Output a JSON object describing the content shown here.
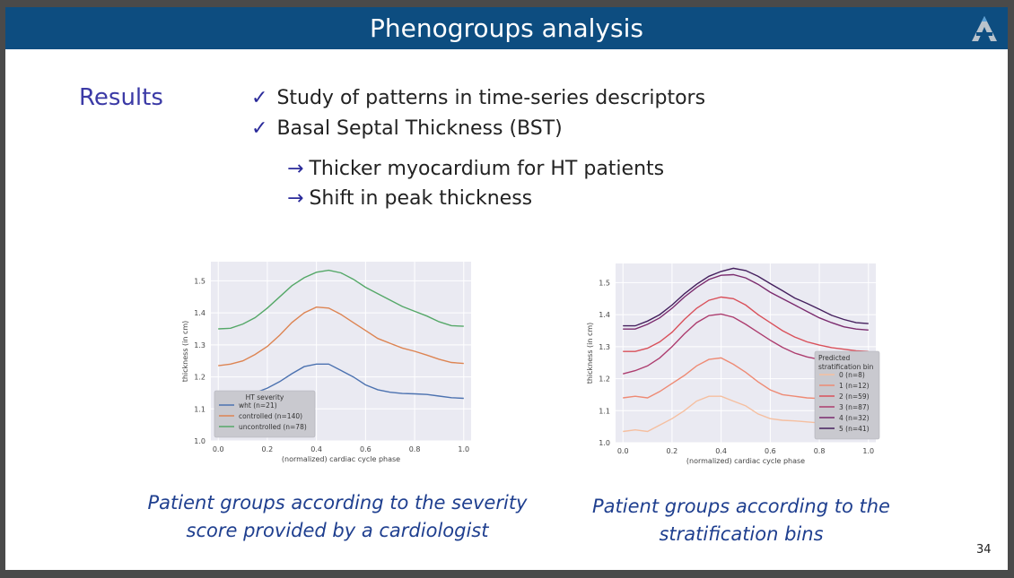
{
  "slide": {
    "title": "Phenogroups analysis",
    "section": "Results",
    "bullets": [
      "Study of patterns in time-series descriptors",
      "Basal Septal Thickness (BST)"
    ],
    "sub_bullets": [
      "Thicker myocardium for HT patients",
      "Shift in peak thickness"
    ],
    "check_symbol": "✓",
    "arrow_symbol": "→",
    "captions": [
      [
        "Patient groups according to the severity",
        "score provided by a cardiologist"
      ],
      [
        "Patient groups according to the",
        "stratification bins"
      ]
    ],
    "page_number": "34",
    "colors": {
      "title_bar": "#0d4d80",
      "accent": "#3b3aa6",
      "caption": "#1f3f8f"
    }
  },
  "chart_data": [
    {
      "type": "line",
      "xlabel": "(normalized) cardiac cycle phase",
      "ylabel": "thickness (in cm)",
      "xlim": [
        -0.03,
        1.03
      ],
      "ylim": [
        1.0,
        1.56
      ],
      "xticks": [
        "0.0",
        "0.2",
        "0.4",
        "0.6",
        "0.8",
        "1.0"
      ],
      "yticks": [
        "1.0",
        "1.1",
        "1.2",
        "1.3",
        "1.4",
        "1.5"
      ],
      "grid": true,
      "legend_title": "HT severity",
      "legend_position": "lower-left",
      "series": [
        {
          "name": "wht (n=21)",
          "color": "#4c72b0",
          "x": [
            0,
            0.05,
            0.1,
            0.15,
            0.2,
            0.25,
            0.3,
            0.35,
            0.4,
            0.45,
            0.5,
            0.55,
            0.6,
            0.65,
            0.7,
            0.75,
            0.8,
            0.85,
            0.9,
            0.95,
            1.0
          ],
          "y": [
            1.145,
            1.145,
            1.142,
            1.15,
            1.165,
            1.185,
            1.21,
            1.232,
            1.24,
            1.24,
            1.22,
            1.2,
            1.175,
            1.16,
            1.152,
            1.148,
            1.147,
            1.145,
            1.14,
            1.135,
            1.133
          ]
        },
        {
          "name": "controlled (n=140)",
          "color": "#dd8452",
          "x": [
            0,
            0.05,
            0.1,
            0.15,
            0.2,
            0.25,
            0.3,
            0.35,
            0.4,
            0.45,
            0.5,
            0.55,
            0.6,
            0.65,
            0.7,
            0.75,
            0.8,
            0.85,
            0.9,
            0.95,
            1.0
          ],
          "y": [
            1.235,
            1.24,
            1.25,
            1.27,
            1.295,
            1.33,
            1.37,
            1.4,
            1.418,
            1.415,
            1.395,
            1.37,
            1.345,
            1.32,
            1.305,
            1.29,
            1.28,
            1.268,
            1.255,
            1.245,
            1.242
          ]
        },
        {
          "name": "uncontrolled (n=78)",
          "color": "#55a868",
          "x": [
            0,
            0.05,
            0.1,
            0.15,
            0.2,
            0.25,
            0.3,
            0.35,
            0.4,
            0.45,
            0.5,
            0.55,
            0.6,
            0.65,
            0.7,
            0.75,
            0.8,
            0.85,
            0.9,
            0.95,
            1.0
          ],
          "y": [
            1.35,
            1.352,
            1.365,
            1.385,
            1.415,
            1.45,
            1.485,
            1.51,
            1.527,
            1.533,
            1.525,
            1.505,
            1.48,
            1.46,
            1.44,
            1.42,
            1.405,
            1.39,
            1.372,
            1.36,
            1.358
          ]
        }
      ]
    },
    {
      "type": "line",
      "xlabel": "(normalized) cardiac cycle phase",
      "ylabel": "thickness (in cm)",
      "xlim": [
        -0.03,
        1.03
      ],
      "ylim": [
        1.0,
        1.56
      ],
      "xticks": [
        "0.0",
        "0.2",
        "0.4",
        "0.6",
        "0.8",
        "1.0"
      ],
      "yticks": [
        "1.0",
        "1.1",
        "1.2",
        "1.3",
        "1.4",
        "1.5"
      ],
      "grid": true,
      "legend_title": "Predicted\nstratification bin",
      "legend_position": "right",
      "series": [
        {
          "name": "0 (n=8)",
          "color": "#f5bfa0",
          "x": [
            0,
            0.05,
            0.1,
            0.15,
            0.2,
            0.25,
            0.3,
            0.35,
            0.4,
            0.45,
            0.5,
            0.55,
            0.6,
            0.65,
            0.7,
            0.75,
            0.8,
            0.85,
            0.9,
            0.95,
            1.0
          ],
          "y": [
            1.035,
            1.04,
            1.035,
            1.055,
            1.075,
            1.1,
            1.13,
            1.145,
            1.145,
            1.13,
            1.115,
            1.09,
            1.075,
            1.07,
            1.068,
            1.065,
            1.062,
            1.06,
            1.058,
            1.057,
            1.055
          ]
        },
        {
          "name": "1 (n=12)",
          "color": "#ee8a74",
          "x": [
            0,
            0.05,
            0.1,
            0.15,
            0.2,
            0.25,
            0.3,
            0.35,
            0.4,
            0.45,
            0.5,
            0.55,
            0.6,
            0.65,
            0.7,
            0.75,
            0.8,
            0.85,
            0.9,
            0.95,
            1.0
          ],
          "y": [
            1.14,
            1.145,
            1.14,
            1.16,
            1.185,
            1.21,
            1.24,
            1.26,
            1.265,
            1.245,
            1.22,
            1.19,
            1.165,
            1.15,
            1.145,
            1.14,
            1.138,
            1.135,
            1.13,
            1.128,
            1.125
          ]
        },
        {
          "name": "2 (n=59)",
          "color": "#d9505a",
          "x": [
            0,
            0.05,
            0.1,
            0.15,
            0.2,
            0.25,
            0.3,
            0.35,
            0.4,
            0.45,
            0.5,
            0.55,
            0.6,
            0.65,
            0.7,
            0.75,
            0.8,
            0.85,
            0.9,
            0.95,
            1.0
          ],
          "y": [
            1.285,
            1.285,
            1.295,
            1.315,
            1.345,
            1.385,
            1.42,
            1.445,
            1.455,
            1.45,
            1.43,
            1.4,
            1.375,
            1.35,
            1.33,
            1.315,
            1.305,
            1.297,
            1.292,
            1.287,
            1.285
          ]
        },
        {
          "name": "3 (n=87)",
          "color": "#ad3d6f",
          "x": [
            0,
            0.05,
            0.1,
            0.15,
            0.2,
            0.25,
            0.3,
            0.35,
            0.4,
            0.45,
            0.5,
            0.55,
            0.6,
            0.65,
            0.7,
            0.75,
            0.8,
            0.85,
            0.9,
            0.95,
            1.0
          ],
          "y": [
            1.215,
            1.225,
            1.24,
            1.265,
            1.3,
            1.34,
            1.375,
            1.397,
            1.402,
            1.392,
            1.37,
            1.345,
            1.32,
            1.298,
            1.28,
            1.268,
            1.26,
            1.255,
            1.25,
            1.245,
            1.24
          ]
        },
        {
          "name": "4 (n=32)",
          "color": "#7b2b6e",
          "x": [
            0,
            0.05,
            0.1,
            0.15,
            0.2,
            0.25,
            0.3,
            0.35,
            0.4,
            0.45,
            0.5,
            0.55,
            0.6,
            0.65,
            0.7,
            0.75,
            0.8,
            0.85,
            0.9,
            0.95,
            1.0
          ],
          "y": [
            1.355,
            1.355,
            1.37,
            1.39,
            1.42,
            1.455,
            1.485,
            1.51,
            1.523,
            1.525,
            1.515,
            1.495,
            1.47,
            1.45,
            1.43,
            1.41,
            1.39,
            1.375,
            1.362,
            1.355,
            1.352
          ]
        },
        {
          "name": "5 (n=41)",
          "color": "#45205e",
          "x": [
            0,
            0.05,
            0.1,
            0.15,
            0.2,
            0.25,
            0.3,
            0.35,
            0.4,
            0.45,
            0.5,
            0.55,
            0.6,
            0.65,
            0.7,
            0.75,
            0.8,
            0.85,
            0.9,
            0.95,
            1.0
          ],
          "y": [
            1.365,
            1.365,
            1.38,
            1.4,
            1.43,
            1.465,
            1.495,
            1.52,
            1.535,
            1.545,
            1.538,
            1.52,
            1.497,
            1.475,
            1.452,
            1.435,
            1.417,
            1.398,
            1.385,
            1.375,
            1.372
          ]
        }
      ]
    }
  ]
}
